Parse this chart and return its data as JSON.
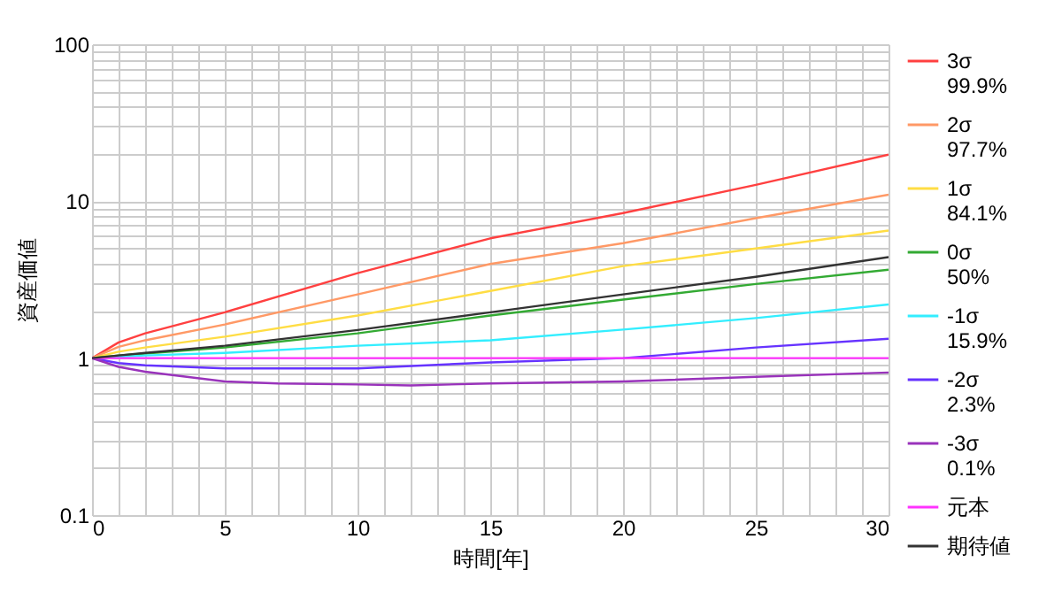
{
  "chart_data": {
    "type": "line",
    "xlabel": "時間[年]",
    "ylabel": "資産価値",
    "log": "y",
    "grid": true,
    "legend": "right",
    "xlim": [
      0,
      30
    ],
    "ylim": [
      0.1,
      100
    ],
    "xticks": [
      0,
      {
        "value": 1,
        "label": null
      },
      {
        "value": 2,
        "label": null
      },
      {
        "value": 3,
        "label": null
      },
      {
        "value": 4,
        "label": null
      },
      5,
      {
        "value": 6,
        "label": null
      },
      {
        "value": 7,
        "label": null
      },
      {
        "value": 8,
        "label": null
      },
      {
        "value": 9,
        "label": null
      },
      10,
      {
        "value": 11,
        "label": null
      },
      {
        "value": 12,
        "label": null
      },
      {
        "value": 13,
        "label": null
      },
      {
        "value": 14,
        "label": null
      },
      15,
      {
        "value": 16,
        "label": null
      },
      {
        "value": 17,
        "label": null
      },
      {
        "value": 18,
        "label": null
      },
      {
        "value": 19,
        "label": null
      },
      20,
      {
        "value": 21,
        "label": null
      },
      {
        "value": 22,
        "label": null
      },
      {
        "value": 23,
        "label": null
      },
      {
        "value": 24,
        "label": null
      },
      25,
      {
        "value": 26,
        "label": null
      },
      {
        "value": 27,
        "label": null
      },
      {
        "value": 28,
        "label": null
      },
      {
        "value": 29,
        "label": null
      },
      30
    ],
    "yticks": [
      0.1,
      {
        "value": 0.2,
        "label": null
      },
      {
        "value": 0.3,
        "label": null
      },
      {
        "value": 0.4,
        "label": null
      },
      {
        "value": 0.5,
        "label": null
      },
      {
        "value": 0.6,
        "label": null
      },
      {
        "value": 0.7,
        "label": null
      },
      {
        "value": 0.8,
        "label": null
      },
      {
        "value": 0.9,
        "label": null
      },
      1,
      {
        "value": 2,
        "label": null
      },
      {
        "value": 3,
        "label": null
      },
      {
        "value": 4,
        "label": null
      },
      {
        "value": 5,
        "label": null
      },
      {
        "value": 6,
        "label": null
      },
      {
        "value": 7,
        "label": null
      },
      {
        "value": 8,
        "label": null
      },
      {
        "value": 9,
        "label": null
      },
      10,
      {
        "value": 20,
        "label": null
      },
      {
        "value": 30,
        "label": null
      },
      {
        "value": 40,
        "label": null
      },
      {
        "value": 50,
        "label": null
      },
      {
        "value": 60,
        "label": null
      },
      {
        "value": 70,
        "label": null
      },
      {
        "value": 80,
        "label": null
      },
      {
        "value": 90,
        "label": null
      },
      100
    ],
    "series": [
      {
        "name": "3σ 99.9%",
        "color": "#ff4040",
        "x": [
          0,
          1,
          2,
          5,
          10,
          15,
          20,
          25,
          30
        ],
        "values": [
          1,
          1.26,
          1.44,
          1.96,
          3.48,
          5.8,
          8.4,
          12.7,
          19.8
        ]
      },
      {
        "name": "2σ 97.7%",
        "color": "#ff9966",
        "x": [
          0,
          1,
          2,
          5,
          10,
          15,
          20,
          25,
          30
        ],
        "values": [
          1,
          1.18,
          1.3,
          1.64,
          2.55,
          3.98,
          5.4,
          7.8,
          11
        ]
      },
      {
        "name": "1σ 84.1%",
        "color": "#ffdd44",
        "x": [
          0,
          1,
          2,
          5,
          10,
          15,
          20,
          25,
          30
        ],
        "values": [
          1,
          1.1,
          1.17,
          1.37,
          1.87,
          2.68,
          3.86,
          5,
          6.5
        ]
      },
      {
        "name": "0σ 50%",
        "color": "#33aa33",
        "x": [
          0,
          1,
          2,
          5,
          10,
          15,
          20,
          25,
          30
        ],
        "values": [
          1,
          1.04,
          1.07,
          1.17,
          1.44,
          1.87,
          2.36,
          2.97,
          3.66
        ]
      },
      {
        "name": "-1σ 15.9%",
        "color": "#33eeff",
        "x": [
          0,
          1,
          2,
          5,
          10,
          15,
          20,
          25,
          30
        ],
        "values": [
          1,
          1.02,
          1.04,
          1.08,
          1.2,
          1.3,
          1.52,
          1.8,
          2.2
        ]
      },
      {
        "name": "-2σ 2.3%",
        "color": "#6633ff",
        "x": [
          0,
          1,
          2,
          5,
          10,
          15,
          20,
          25,
          30
        ],
        "values": [
          1,
          0.93,
          0.9,
          0.86,
          0.86,
          0.94,
          1,
          1.17,
          1.33
        ]
      },
      {
        "name": "-3σ 0.1%",
        "color": "#9933bb",
        "x": [
          0,
          1,
          2,
          5,
          7,
          10,
          12,
          15,
          20,
          25,
          30
        ],
        "values": [
          1,
          0.88,
          0.82,
          0.71,
          0.69,
          0.68,
          0.67,
          0.69,
          0.71,
          0.76,
          0.81
        ]
      },
      {
        "name": "元本",
        "color": "#ff33ff",
        "x": [
          0,
          30
        ],
        "values": [
          1,
          1
        ]
      },
      {
        "name": "期待値",
        "color": "#333333",
        "x": [
          0,
          1,
          2,
          5,
          10,
          15,
          20,
          25,
          30
        ],
        "values": [
          1,
          1.04,
          1.08,
          1.2,
          1.51,
          1.96,
          2.55,
          3.3,
          4.4
        ]
      }
    ]
  }
}
